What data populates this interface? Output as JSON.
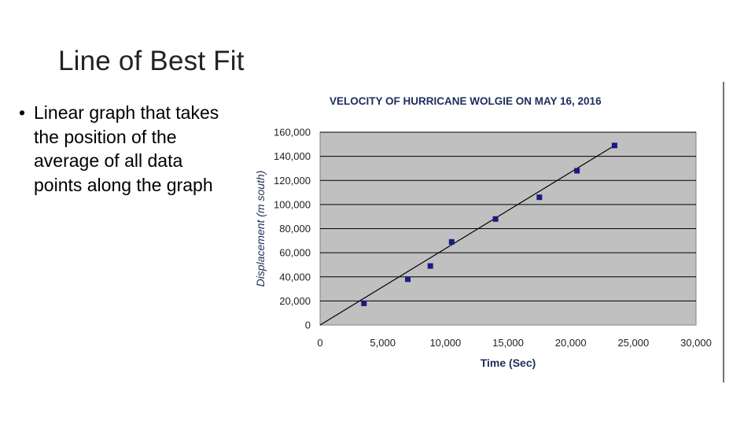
{
  "slide": {
    "title": "Line of Best Fit",
    "bullet_symbol": "•",
    "bullet_text": "Linear graph that takes the position of the average of all data points along the graph"
  },
  "chart_data": {
    "type": "scatter",
    "title": "VELOCITY OF HURRICANE WOLGIE ON MAY 16, 2016",
    "xlabel": "Time (Sec)",
    "ylabel": "Displacement (m south)",
    "xlim": [
      0,
      30000
    ],
    "ylim": [
      0,
      160000
    ],
    "x_ticks": [
      0,
      5000,
      10000,
      15000,
      20000,
      25000,
      30000
    ],
    "x_tick_labels": [
      "0",
      "5,000",
      "10,000",
      "15,000",
      "20,000",
      "25,000",
      "30,000"
    ],
    "y_ticks": [
      0,
      20000,
      40000,
      60000,
      80000,
      100000,
      120000,
      140000,
      160000
    ],
    "y_tick_labels": [
      "0",
      "20,000",
      "40,000",
      "60,000",
      "80,000",
      "100,000",
      "120,000",
      "140,000",
      "160,000"
    ],
    "grid": "horizontal",
    "legend": "none",
    "series": [
      {
        "x": [
          3500,
          7000,
          8800,
          10500,
          14000,
          17500,
          20500,
          23500
        ],
        "y": [
          18000,
          38000,
          49000,
          69000,
          88000,
          106000,
          128000,
          149000
        ],
        "color": "#1a1a80",
        "marker": "square"
      }
    ],
    "trendline": {
      "x": [
        0,
        23500
      ],
      "y": [
        0,
        149000
      ],
      "color": "#000000"
    },
    "plot_background": "#c0c0c0",
    "title_color": "#1d2e5a"
  }
}
